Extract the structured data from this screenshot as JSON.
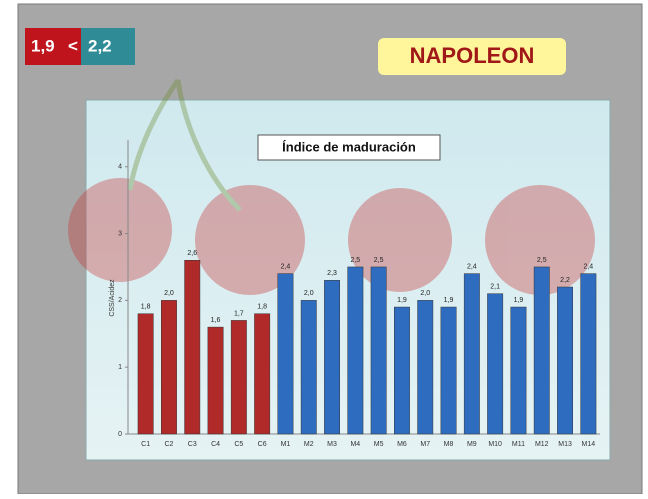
{
  "badge": {
    "left": "1,9",
    "sign": "<",
    "right": "2,2"
  },
  "heading": "NAPOLEON",
  "chart_data": {
    "type": "bar",
    "title": "Índice de maduración",
    "y_label": "CSS/Acidez",
    "categories": [
      "C1",
      "C2",
      "C3",
      "C4",
      "C5",
      "C6",
      "M1",
      "M2",
      "M3",
      "M4",
      "M5",
      "M6",
      "M7",
      "M8",
      "M9",
      "M10",
      "M11",
      "M12",
      "M13",
      "M14"
    ],
    "values": [
      1.8,
      2.0,
      2.6,
      1.6,
      1.7,
      1.8,
      2.4,
      2.0,
      2.3,
      2.5,
      2.5,
      1.9,
      2.0,
      1.9,
      2.4,
      2.1,
      1.9,
      2.5,
      2.2,
      2.4
    ],
    "value_labels": [
      "1,8",
      "2,0",
      "2,6",
      "1,6",
      "1,7",
      "1,8",
      "2,4",
      "2,0",
      "2,3",
      "2,5",
      "2,5",
      "1,9",
      "2,0",
      "1,9",
      "2,4",
      "2,1",
      "1,9",
      "2,5",
      "2,2",
      "2,4"
    ],
    "colors": [
      "#b02a2a",
      "#b02a2a",
      "#b02a2a",
      "#b02a2a",
      "#b02a2a",
      "#b02a2a",
      "#2e6cc0",
      "#2e6cc0",
      "#2e6cc0",
      "#2e6cc0",
      "#2e6cc0",
      "#2e6cc0",
      "#2e6cc0",
      "#2e6cc0",
      "#2e6cc0",
      "#2e6cc0",
      "#2e6cc0",
      "#2e6cc0",
      "#2e6cc0",
      "#2e6cc0"
    ],
    "ylim": [
      0,
      4.4
    ],
    "yticks": [
      0,
      1,
      2,
      3,
      4
    ]
  }
}
